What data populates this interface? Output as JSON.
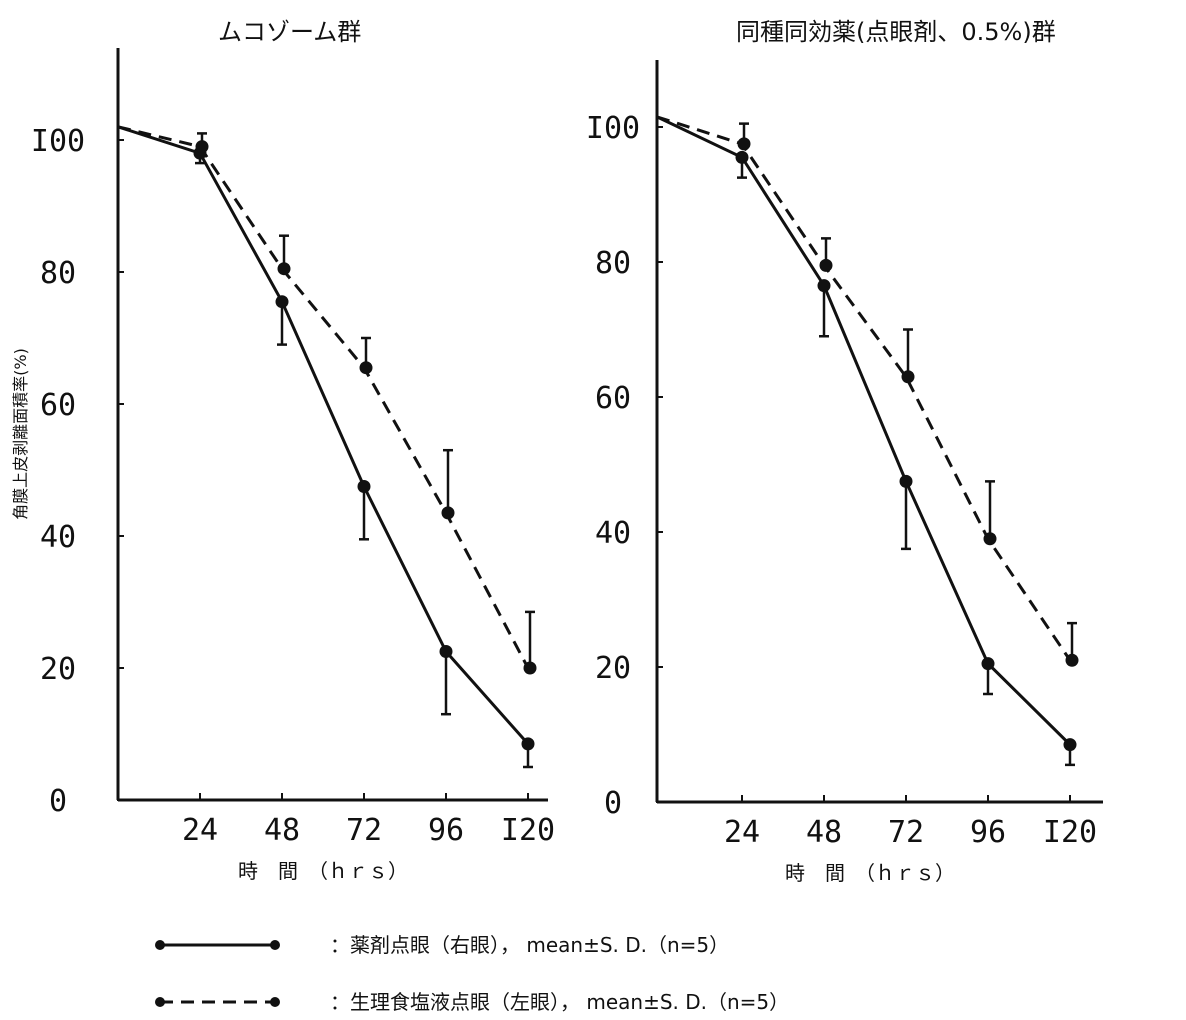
{
  "colors": {
    "ink": "#111111",
    "background": "#ffffff"
  },
  "ylabel": "角膜上皮剥離面積率(%)",
  "xlabel": "時　間　（ｈｒｓ）",
  "chart_data": [
    {
      "type": "line",
      "title": "ムコゾーム群",
      "x": [
        0,
        24,
        48,
        72,
        96,
        120
      ],
      "xticks": [
        "24",
        "48",
        "72",
        "96",
        "I20"
      ],
      "yticks": [
        "0",
        "20",
        "40",
        "60",
        "80",
        "I00"
      ],
      "xlim": [
        0,
        125
      ],
      "ylim": [
        0,
        110
      ],
      "grid": false,
      "series": [
        {
          "name": "薬剤点眼（右眼），mean±S. D.（n=5）",
          "style": "solid",
          "values": [
            102,
            98,
            75.5,
            47.5,
            22.5,
            8.5
          ],
          "err": [
            0,
            1.5,
            6.5,
            8,
            9.5,
            3.5
          ]
        },
        {
          "name": "生理食塩液点眼（左眼），mean±S. D.（n=5）",
          "style": "dashed",
          "values": [
            102,
            99,
            80.5,
            65.5,
            43.5,
            20
          ],
          "err": [
            0,
            2,
            5,
            4.5,
            9.5,
            8.5
          ]
        }
      ]
    },
    {
      "type": "line",
      "title": "同種同効薬(点眼剤、0.5%)群",
      "x": [
        0,
        24,
        48,
        72,
        96,
        120
      ],
      "xticks": [
        "24",
        "48",
        "72",
        "96",
        "I20"
      ],
      "yticks": [
        "0",
        "20",
        "40",
        "60",
        "80",
        "I00"
      ],
      "xlim": [
        0,
        125
      ],
      "ylim": [
        0,
        110
      ],
      "grid": false,
      "series": [
        {
          "name": "薬剤点眼（右眼），mean±S. D.（n=5）",
          "style": "solid",
          "values": [
            101.5,
            95.5,
            76.5,
            47.5,
            20.5,
            8.5
          ],
          "err": [
            0,
            3,
            7.5,
            10,
            4.5,
            3
          ]
        },
        {
          "name": "生理食塩液点眼（左眼），mean±S. D.（n=5）",
          "style": "dashed",
          "values": [
            101.5,
            97.5,
            79.5,
            63,
            39,
            21
          ],
          "err": [
            0,
            3,
            4,
            7,
            8.5,
            5.5
          ]
        }
      ]
    }
  ],
  "legend": [
    {
      "style": "solid",
      "label": "：薬剤点眼（右眼）， mean±S. D.（n=5）"
    },
    {
      "style": "dashed",
      "label": "：生理食塩液点眼（左眼）， mean±S. D.（n=5）"
    }
  ]
}
